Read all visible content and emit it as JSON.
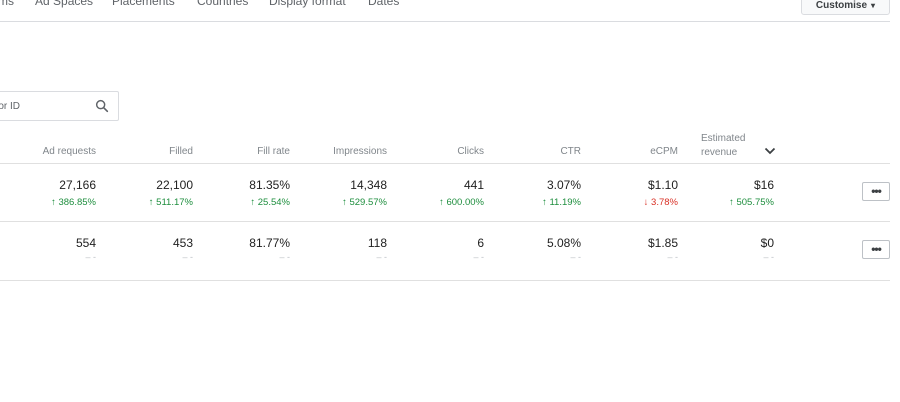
{
  "tabs": [
    "ms",
    "Ad Spaces",
    "Placements",
    "Countries",
    "Display format",
    "Dates"
  ],
  "customise_button": {
    "label": "Customise",
    "caret": "▾"
  },
  "search": {
    "placeholder": "e or ID",
    "icon": "search-icon"
  },
  "columns": {
    "ad_requests": "Ad requests",
    "filled": "Filled",
    "fill_rate": "Fill rate",
    "impressions": "Impressions",
    "clicks": "Clicks",
    "ctr": "CTR",
    "ecpm": "eCPM",
    "estimated_revenue_line1": "Estimated",
    "estimated_revenue_line2": "revenue",
    "sort_icon": "chevron-down-icon"
  },
  "rows": [
    {
      "ad_requests": "27,166",
      "ad_requests_change": "↑ 386.85%",
      "filled": "22,100",
      "filled_change": "↑ 511.17%",
      "fill_rate": "81.35%",
      "fill_rate_change": "↑ 25.54%",
      "impressions": "14,348",
      "impressions_change": "↑ 529.57%",
      "clicks": "441",
      "clicks_change": "↑ 600.00%",
      "ctr": "3.07%",
      "ctr_change": "↑ 11.19%",
      "ecpm": "$1.10",
      "ecpm_change": "↓ 3.78%",
      "revenue": "$16",
      "revenue_change": "↑ 505.75%",
      "more_label": "•••"
    },
    {
      "ad_requests": "554",
      "filled": "453",
      "fill_rate": "81.77%",
      "impressions": "118",
      "clicks": "6",
      "ctr": "5.08%",
      "ecpm": "$1.85",
      "revenue": "$0",
      "no_change": "– ‑",
      "more_label": "•••"
    }
  ],
  "colors": {
    "positive": "#1e8e3e",
    "negative": "#d93025",
    "header_text": "#80868b",
    "divider": "#e0e0e0"
  }
}
